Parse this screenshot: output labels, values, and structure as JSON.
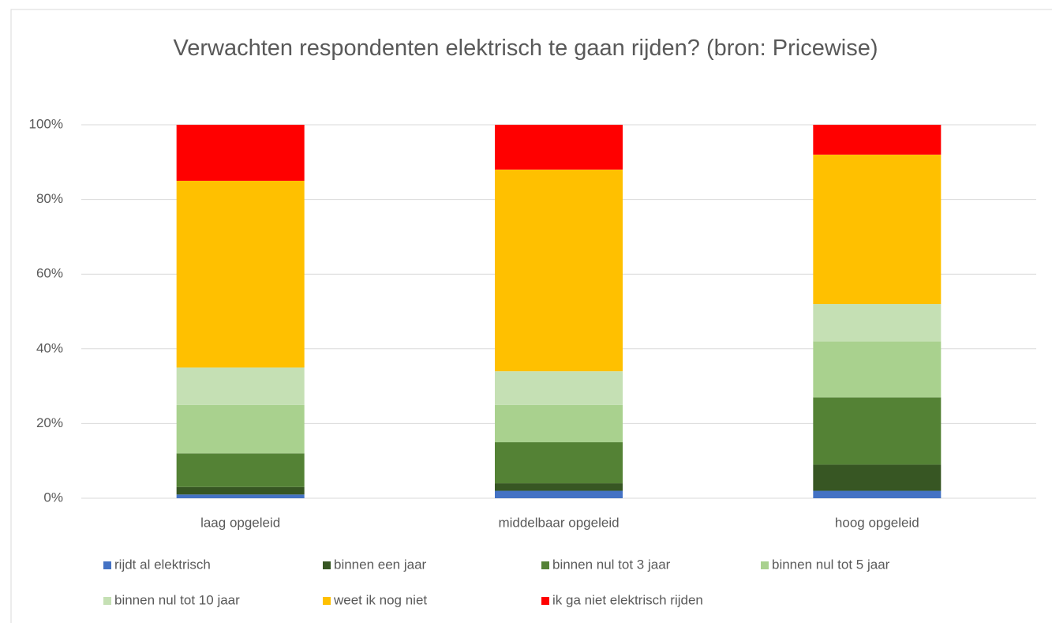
{
  "chart_data": {
    "type": "stacked_bar",
    "title": "Verwachten respondenten elektrisch te gaan rijden? (bron: Pricewise)",
    "categories": [
      "laag opgeleid",
      "middelbaar opgeleid",
      "hoog opgeleid"
    ],
    "series": [
      {
        "name": "rijdt al elektrisch",
        "color": "#4472c4",
        "values": [
          1,
          2,
          2
        ]
      },
      {
        "name": "binnen een jaar",
        "color": "#375623",
        "values": [
          2,
          2,
          7
        ]
      },
      {
        "name": "binnen nul tot 3 jaar",
        "color": "#548235",
        "values": [
          9,
          11,
          18
        ]
      },
      {
        "name": "binnen nul tot 5 jaar",
        "color": "#a9d18e",
        "values": [
          13,
          10,
          15
        ]
      },
      {
        "name": "binnen nul tot 10 jaar",
        "color": "#c5e0b4",
        "values": [
          10,
          9,
          10
        ]
      },
      {
        "name": "weet ik nog niet",
        "color": "#ffc000",
        "values": [
          50,
          54,
          40
        ]
      },
      {
        "name": "ik ga niet elektrisch rijden",
        "color": "#ff0000",
        "values": [
          15,
          12,
          8
        ]
      }
    ],
    "ylim": [
      0,
      100
    ],
    "yticks": [
      {
        "value": 0,
        "label": "0%"
      },
      {
        "value": 20,
        "label": "20%"
      },
      {
        "value": 40,
        "label": "40%"
      },
      {
        "value": 60,
        "label": "60%"
      },
      {
        "value": 80,
        "label": "80%"
      },
      {
        "value": 100,
        "label": "100%"
      }
    ],
    "grid": true,
    "legend": "bottom"
  }
}
